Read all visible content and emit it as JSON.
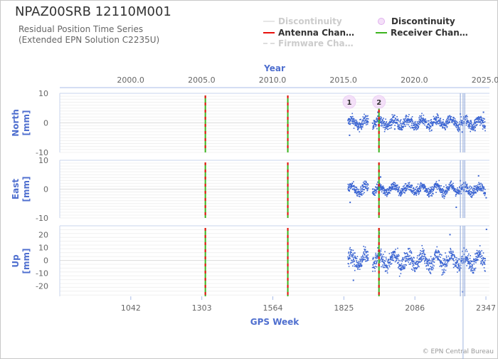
{
  "header": {
    "title": "NPAZ00SRB 12110M001",
    "subtitle_line1": "Residual Position Time Series",
    "subtitle_line2": "(Extended EPN Solution C2235U)"
  },
  "legend": [
    {
      "label": "Discontinuity",
      "color": "#e6e6e6",
      "style": "line",
      "state": "hidden"
    },
    {
      "label": "Discontinuity",
      "color": "#e8c0f0",
      "style": "dot",
      "state": "shown"
    },
    {
      "label": "Antenna Chan…",
      "color": "#e8100c",
      "style": "line",
      "state": "shown"
    },
    {
      "label": "Receiver Chan…",
      "color": "#3cb41e",
      "style": "line",
      "state": "shown"
    },
    {
      "label": "Firmware Cha…",
      "color": "#dddddd",
      "style": "dashed",
      "state": "hidden"
    }
  ],
  "credit": "© EPN Central Bureau",
  "chart_data": {
    "type": "scatter",
    "x_axis_bottom": {
      "title": "GPS Week",
      "range": [
        781,
        2360
      ],
      "ticks": [
        1042,
        1303,
        1564,
        1825,
        2086,
        2347
      ]
    },
    "x_axis_top": {
      "title": "Year",
      "range": [
        1995,
        2025.3
      ],
      "ticks": [
        2000.0,
        2005.0,
        2010.0,
        2015.0,
        2020.0,
        2025.0
      ]
    },
    "panels": [
      {
        "name": "North",
        "unit": "[mm]",
        "ylim": [
          -10,
          10
        ],
        "yticks": [
          10,
          0,
          -10
        ],
        "spread": 1.3,
        "outliers": [
          [
            1846,
            -4.2
          ],
          [
            1950,
            3.6
          ],
          [
            2253,
            3.0
          ],
          [
            2260,
            -3.1
          ],
          [
            2338,
            3.6
          ],
          [
            2307,
            -2.6
          ],
          [
            2012,
            -2.1
          ]
        ]
      },
      {
        "name": "East",
        "unit": "[mm]",
        "ylim": [
          -10,
          10
        ],
        "yticks": [
          10,
          0,
          -10
        ],
        "spread": 1.2,
        "outliers": [
          [
            1848,
            -4.6
          ],
          [
            1960,
            4.2
          ],
          [
            2238,
            -6.3
          ],
          [
            2253,
            2.9
          ],
          [
            2320,
            4.6
          ],
          [
            2348,
            -3.0
          ]
        ]
      },
      {
        "name": "Up",
        "unit": "[mm]",
        "ylim": [
          -28,
          27
        ],
        "yticks": [
          20,
          10,
          0,
          -10,
          -20
        ],
        "spread": 4.8,
        "outliers": [
          [
            2262,
            -24.5
          ],
          [
            2349,
            24.2
          ],
          [
            2215,
            20.1
          ],
          [
            1860,
            -15.5
          ],
          [
            1955,
            21.2
          ]
        ]
      }
    ],
    "data_range": {
      "start_week": 1840,
      "end_week": 2345,
      "gap_weeks": [
        [
          1915,
          1930
        ]
      ]
    },
    "antenna_changes": [
      1316,
      1619,
      1954
    ],
    "receiver_changes": [
      1316,
      1619,
      1954
    ],
    "discontinuities": [
      {
        "label": "1",
        "week": 1845
      },
      {
        "label": "2",
        "week": 1954
      }
    ],
    "data_gaps": [
      2253,
      2263,
      2269
    ],
    "point_color": "#3a64d2"
  }
}
